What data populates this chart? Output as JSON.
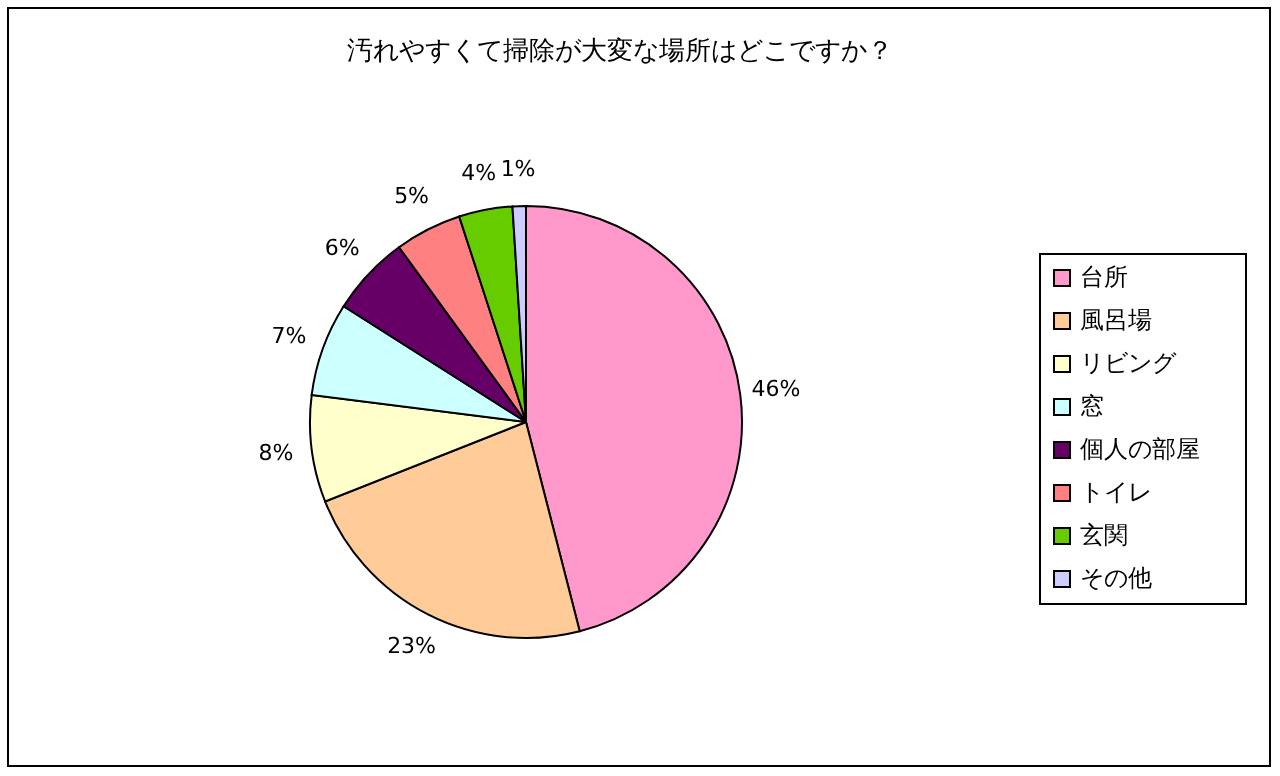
{
  "chart_data": {
    "type": "pie",
    "title": "汚れやすくて掃除が大変な場所はどこですか？",
    "categories": [
      "台所",
      "風呂場",
      "リビング",
      "窓",
      "個人の部屋",
      "トイレ",
      "玄関",
      "その他"
    ],
    "values": [
      46,
      23,
      8,
      7,
      6,
      5,
      4,
      1
    ],
    "value_labels": [
      "46%",
      "23%",
      "8%",
      "7%",
      "6%",
      "5%",
      "4%",
      "1%"
    ],
    "colors": [
      "#ff99cc",
      "#ffcc99",
      "#ffffcc",
      "#ccffff",
      "#660066",
      "#ff8080",
      "#66cc00",
      "#ccccff"
    ],
    "legend": "right"
  }
}
